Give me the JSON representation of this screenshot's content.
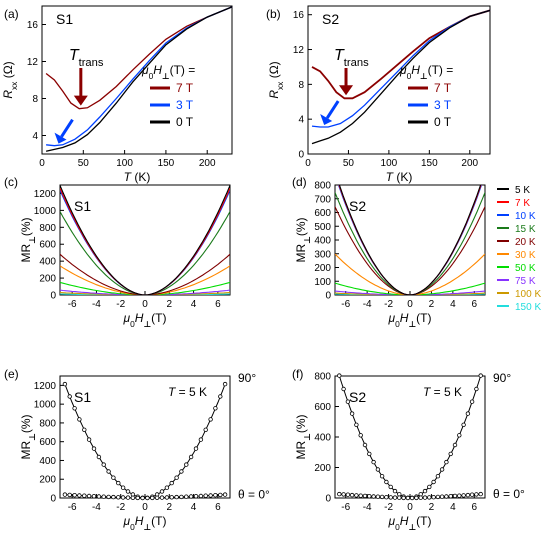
{
  "figure": {
    "panel_labels": [
      "(a)",
      "(b)",
      "(c)",
      "(d)",
      "(e)",
      "(f)"
    ],
    "legend_bc_title": "μ0H⊥(T) =",
    "temperature_legend": [
      "5 K",
      "7 K",
      "10 K",
      "15 K",
      "20 K",
      "30 K",
      "50 K",
      "75 K",
      "100 K",
      "150 K"
    ],
    "temperature_colors": [
      "#000000",
      "#ff0000",
      "#0040ff",
      "#1a7a1a",
      "#800000",
      "#ff8800",
      "#00dd00",
      "#8833ff",
      "#cc9900",
      "#22dddd"
    ]
  },
  "chart_data": [
    {
      "type": "line",
      "panel": "(a)",
      "sample": "S1",
      "xlabel": "T (K)",
      "ylabel": "Rxx (Ω)",
      "xlim": [
        0,
        230
      ],
      "ylim": [
        2,
        18
      ],
      "xticks": [
        0,
        50,
        100,
        150,
        200
      ],
      "yticks": [
        4,
        8,
        12,
        16
      ],
      "annotation": "Ttrans",
      "legend_title": "μ0H⊥(T) =",
      "series": [
        {
          "name": "7 T",
          "color": "#8b0000",
          "x": [
            5,
            15,
            25,
            35,
            45,
            55,
            70,
            90,
            110,
            130,
            150,
            175,
            200,
            230
          ],
          "y": [
            10.7,
            10.0,
            8.8,
            7.5,
            6.9,
            7.0,
            7.8,
            9.3,
            11.1,
            12.8,
            14.4,
            15.8,
            16.8,
            17.9
          ]
        },
        {
          "name": "3 T",
          "color": "#0040ff",
          "x": [
            5,
            15,
            25,
            40,
            55,
            70,
            90,
            110,
            130,
            150,
            175,
            200,
            230
          ],
          "y": [
            3.0,
            2.9,
            3.0,
            3.6,
            4.6,
            6.0,
            8.0,
            10.1,
            12.1,
            14.0,
            15.6,
            16.8,
            17.9
          ]
        },
        {
          "name": "0 T",
          "color": "#000000",
          "x": [
            5,
            15,
            25,
            40,
            55,
            70,
            90,
            110,
            130,
            150,
            175,
            200,
            230
          ],
          "y": [
            2.3,
            2.5,
            2.7,
            3.2,
            4.1,
            5.4,
            7.5,
            9.8,
            11.8,
            13.8,
            15.5,
            16.8,
            17.9
          ]
        }
      ]
    },
    {
      "type": "line",
      "panel": "(b)",
      "sample": "S2",
      "xlabel": "T (K)",
      "ylabel": "Rxx (Ω)",
      "xlim": [
        0,
        225
      ],
      "ylim": [
        0,
        17
      ],
      "xticks": [
        0,
        50,
        100,
        150,
        200
      ],
      "yticks": [
        0,
        4,
        8,
        12,
        16
      ],
      "annotation": "Ttrans",
      "legend_title": "μ0H⊥(T) =",
      "series": [
        {
          "name": "7 T",
          "color": "#8b0000",
          "x": [
            5,
            15,
            25,
            35,
            45,
            55,
            70,
            90,
            110,
            130,
            150,
            175,
            200,
            225
          ],
          "y": [
            10.0,
            9.5,
            8.4,
            7.1,
            6.4,
            6.4,
            7.1,
            8.6,
            10.2,
            11.8,
            13.3,
            14.6,
            15.8,
            16.5
          ]
        },
        {
          "name": "3 T",
          "color": "#0040ff",
          "x": [
            5,
            15,
            25,
            40,
            55,
            70,
            90,
            110,
            130,
            150,
            175,
            200,
            225
          ],
          "y": [
            3.2,
            3.1,
            3.1,
            3.5,
            4.4,
            5.6,
            7.5,
            9.4,
            11.3,
            13.0,
            14.6,
            15.8,
            16.5
          ]
        },
        {
          "name": "0 T",
          "color": "#000000",
          "x": [
            5,
            15,
            25,
            40,
            55,
            70,
            90,
            110,
            130,
            150,
            175,
            200,
            225
          ],
          "y": [
            1.2,
            1.5,
            1.8,
            2.5,
            3.5,
            4.8,
            6.9,
            9.0,
            11.0,
            12.8,
            14.5,
            15.8,
            16.5
          ]
        }
      ]
    },
    {
      "type": "line",
      "panel": "(c)",
      "sample": "S1",
      "xlabel": "μ0H⊥(T)",
      "ylabel": "MR⊥(%)",
      "xlim": [
        -7,
        7
      ],
      "ylim": [
        0,
        1300
      ],
      "xticks": [
        -6,
        -4,
        -2,
        0,
        2,
        4,
        6
      ],
      "yticks": [
        0,
        200,
        400,
        600,
        800,
        1000,
        1200
      ],
      "curve": "parabolic; values at |μ0H| = 6.5 T",
      "series": [
        {
          "name": "5 K",
          "color": "#000000",
          "peak": 1130
        },
        {
          "name": "7 K",
          "color": "#ff0000",
          "peak": 1100
        },
        {
          "name": "10 K",
          "color": "#0040ff",
          "peak": 1080
        },
        {
          "name": "15 K",
          "color": "#1a7a1a",
          "peak": 860
        },
        {
          "name": "20 K",
          "color": "#800000",
          "peak": 420
        },
        {
          "name": "30 K",
          "color": "#ff8800",
          "peak": 300
        },
        {
          "name": "50 K",
          "color": "#00dd00",
          "peak": 130
        },
        {
          "name": "75 K",
          "color": "#8833ff",
          "peak": 50
        },
        {
          "name": "100 K",
          "color": "#cc9900",
          "peak": 25
        },
        {
          "name": "150 K",
          "color": "#22dddd",
          "peak": 10
        }
      ]
    },
    {
      "type": "line",
      "panel": "(d)",
      "sample": "S2",
      "xlabel": "μ0H⊥(T)",
      "ylabel": "MR⊥(%)",
      "xlim": [
        -7,
        7
      ],
      "ylim": [
        0,
        800
      ],
      "xticks": [
        -6,
        -4,
        -2,
        0,
        2,
        4,
        6
      ],
      "yticks": [
        0,
        100,
        200,
        300,
        400,
        500,
        600,
        700,
        800
      ],
      "curve": "parabolic; values at |μ0H| = 6.5 T",
      "series": [
        {
          "name": "5 K",
          "color": "#000000",
          "peak": 780
        },
        {
          "name": "7 K",
          "color": "#ff0000",
          "peak": 770
        },
        {
          "name": "10 K",
          "color": "#0040ff",
          "peak": 760
        },
        {
          "name": "15 K",
          "color": "#1a7a1a",
          "peak": 650
        },
        {
          "name": "20 K",
          "color": "#800000",
          "peak": 560
        },
        {
          "name": "30 K",
          "color": "#ff8800",
          "peak": 260
        },
        {
          "name": "50 K",
          "color": "#00dd00",
          "peak": 75
        },
        {
          "name": "75 K",
          "color": "#8833ff",
          "peak": 25
        },
        {
          "name": "100 K",
          "color": "#cc9900",
          "peak": 12
        },
        {
          "name": "150 K",
          "color": "#22dddd",
          "peak": 6
        }
      ]
    },
    {
      "type": "line",
      "panel": "(e)",
      "sample": "S1",
      "xlabel": "μ0H⊥(T)",
      "ylabel": "MR⊥(%)",
      "xlim": [
        -7,
        7
      ],
      "ylim": [
        0,
        1300
      ],
      "xticks": [
        -6,
        -4,
        -2,
        0,
        2,
        4,
        6
      ],
      "yticks": [
        0,
        200,
        400,
        600,
        800,
        1000,
        1200
      ],
      "temperature_label": "T = 5 K",
      "curve": "parabolic with point markers; values at |μ0H| = 6.5 T",
      "series": [
        {
          "name": "90°",
          "color": "#000000",
          "peak": 1180
        },
        {
          "name": "θ = 0°",
          "color": "#000000",
          "peak": 35
        }
      ]
    },
    {
      "type": "line",
      "panel": "(f)",
      "sample": "S2",
      "xlabel": "μ0H⊥(T)",
      "ylabel": "MR⊥(%)",
      "xlim": [
        -7,
        7
      ],
      "ylim": [
        0,
        800
      ],
      "xticks": [
        -6,
        -4,
        -2,
        0,
        2,
        4,
        6
      ],
      "yticks": [
        0,
        200,
        400,
        600,
        800
      ],
      "temperature_label": "T = 5 K",
      "curve": "parabolic with point markers; values at |μ0H| = 6.5 T",
      "series": [
        {
          "name": "90°",
          "color": "#000000",
          "peak": 780
        },
        {
          "name": "θ = 0°",
          "color": "#000000",
          "peak": 25
        }
      ]
    }
  ]
}
